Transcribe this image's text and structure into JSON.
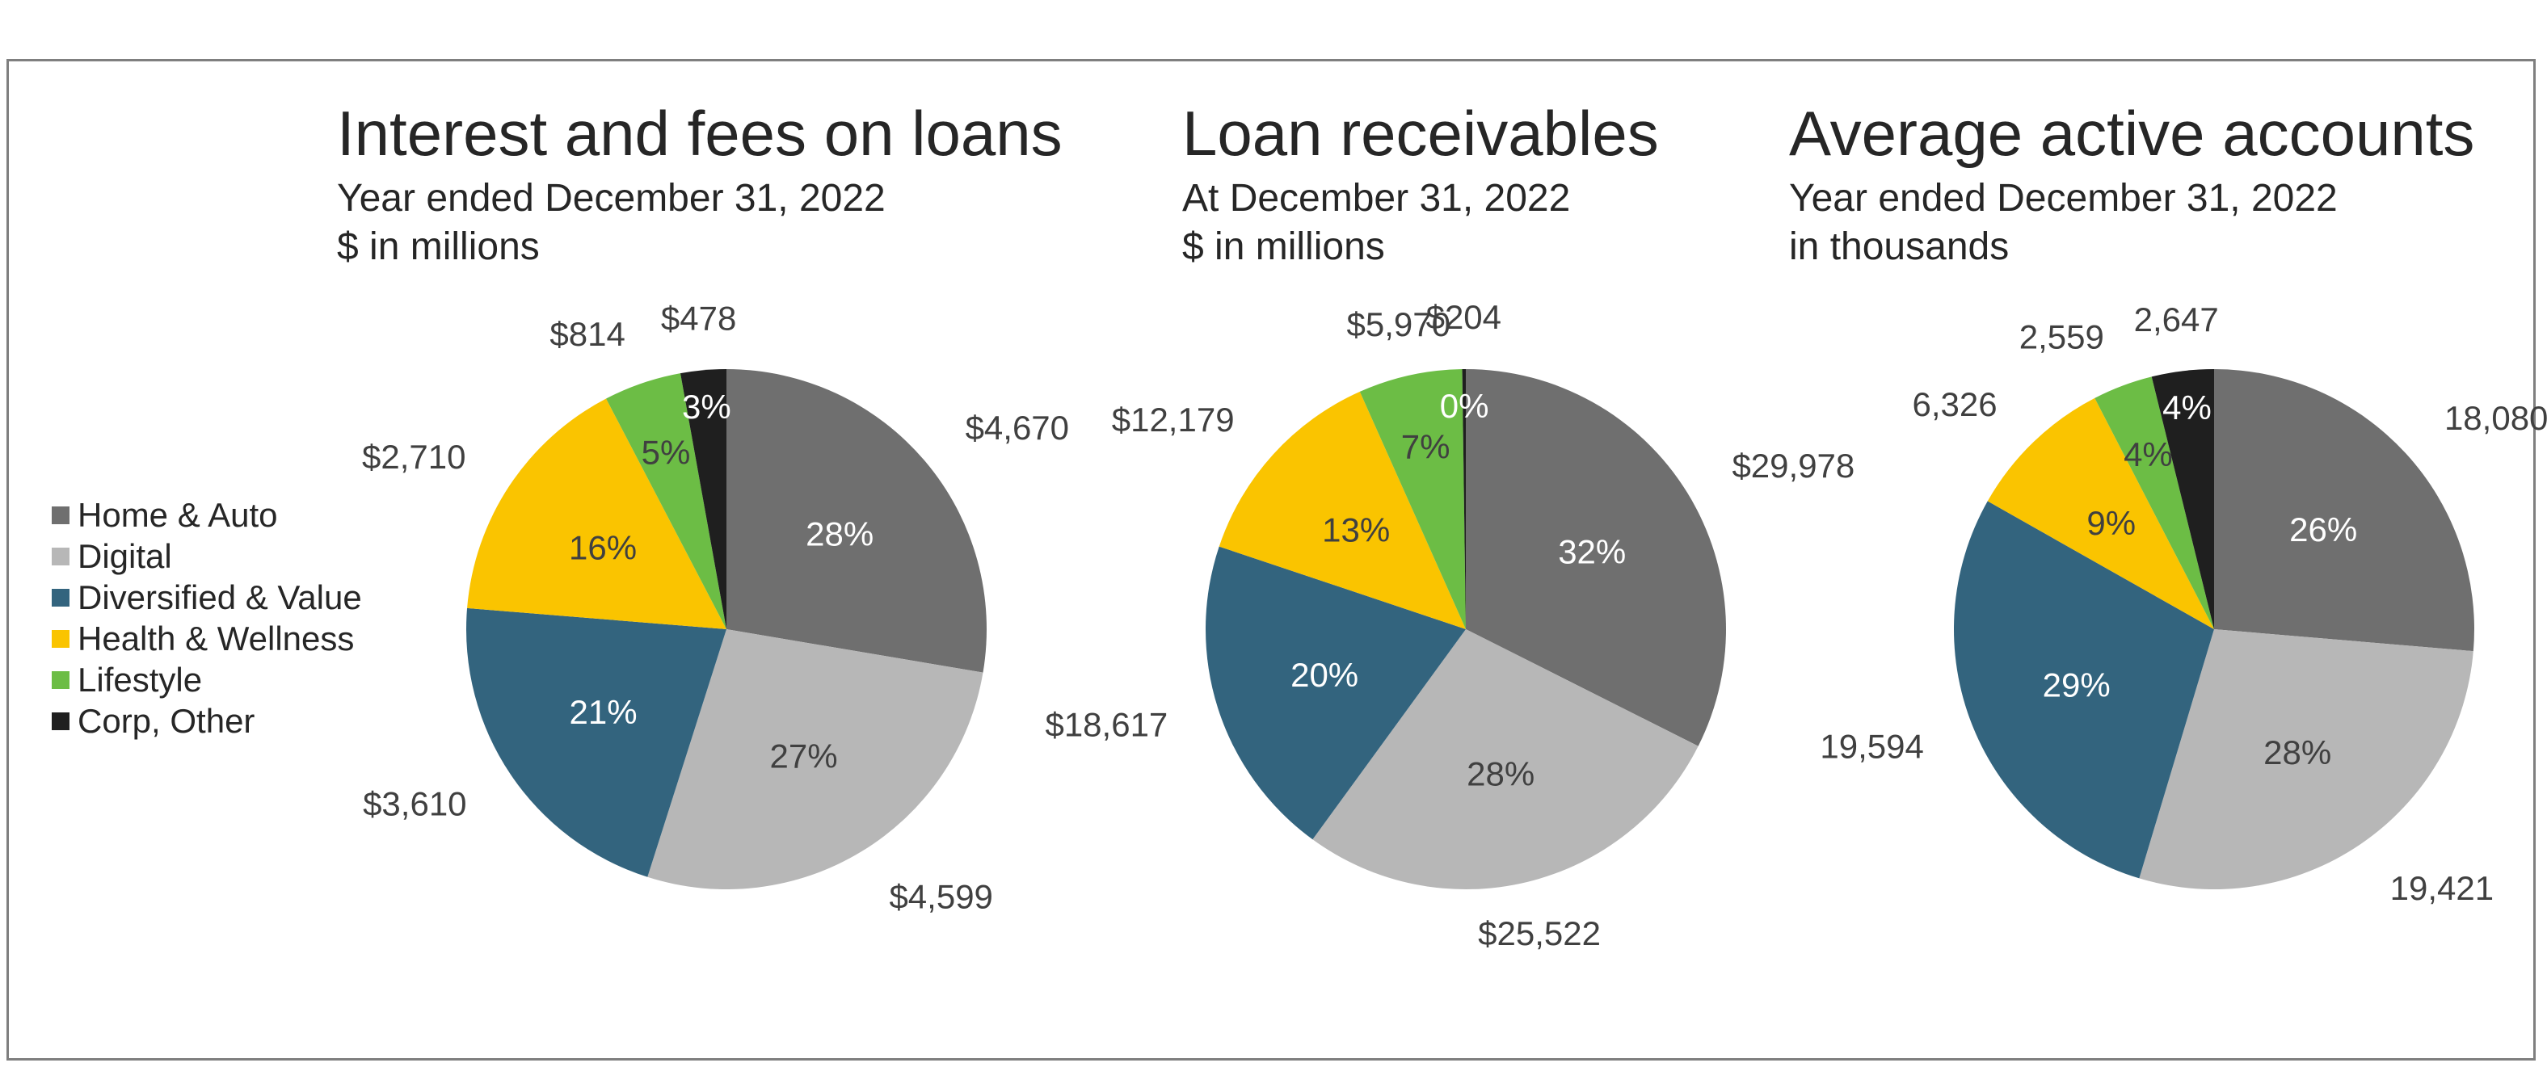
{
  "chart_data": [
    {
      "type": "pie",
      "title": "Interest and fees on loans",
      "subtitle": [
        "Year ended December 31, 2022",
        "$ in millions"
      ],
      "slices": [
        {
          "name": "Home & Auto",
          "value": 4670,
          "label": "$4,670",
          "percent": "28%"
        },
        {
          "name": "Digital",
          "value": 4599,
          "label": "$4,599",
          "percent": "27%"
        },
        {
          "name": "Diversified & Value",
          "value": 3610,
          "label": "$3,610",
          "percent": "21%"
        },
        {
          "name": "Health & Wellness",
          "value": 2710,
          "label": "$2,710",
          "percent": "16%"
        },
        {
          "name": "Lifestyle",
          "value": 814,
          "label": "$814",
          "percent": "5%"
        },
        {
          "name": "Corp, Other",
          "value": 478,
          "label": "$478",
          "percent": "3%"
        }
      ]
    },
    {
      "type": "pie",
      "title": "Loan receivables",
      "subtitle": [
        "At December 31, 2022",
        "$ in millions"
      ],
      "slices": [
        {
          "name": "Home & Auto",
          "value": 29978,
          "label": "$29,978",
          "percent": "32%"
        },
        {
          "name": "Digital",
          "value": 25522,
          "label": "$25,522",
          "percent": "28%"
        },
        {
          "name": "Diversified & Value",
          "value": 18617,
          "label": "$18,617",
          "percent": "20%"
        },
        {
          "name": "Health & Wellness",
          "value": 12179,
          "label": "$12,179",
          "percent": "13%"
        },
        {
          "name": "Lifestyle",
          "value": 5970,
          "label": "$5,970",
          "percent": "7%"
        },
        {
          "name": "Corp, Other",
          "value": 204,
          "label": "$204",
          "percent": "0%"
        }
      ]
    },
    {
      "type": "pie",
      "title": "Average active accounts",
      "subtitle": [
        "Year ended December 31, 2022",
        "in thousands"
      ],
      "slices": [
        {
          "name": "Home & Auto",
          "value": 18080,
          "label": "18,080",
          "percent": "26%"
        },
        {
          "name": "Digital",
          "value": 19421,
          "label": "19,421",
          "percent": "28%"
        },
        {
          "name": "Diversified & Value",
          "value": 19594,
          "label": "19,594",
          "percent": "29%"
        },
        {
          "name": "Health & Wellness",
          "value": 6326,
          "label": "6,326",
          "percent": "9%"
        },
        {
          "name": "Lifestyle",
          "value": 2559,
          "label": "2,559",
          "percent": "4%"
        },
        {
          "name": "Corp, Other",
          "value": 2647,
          "label": "2,647",
          "percent": "4%"
        }
      ]
    }
  ],
  "legend": {
    "position": "left",
    "items": [
      {
        "name": "Home & Auto",
        "color": "#6f6f6f"
      },
      {
        "name": "Digital",
        "color": "#b7b7b7"
      },
      {
        "name": "Diversified & Value",
        "color": "#33647e"
      },
      {
        "name": "Health & Wellness",
        "color": "#fac400"
      },
      {
        "name": "Lifestyle",
        "color": "#6cbd45"
      },
      {
        "name": "Corp, Other",
        "color": "#1f1f1f"
      }
    ]
  },
  "percent_label_colors": [
    "#ffffff",
    "#404040",
    "#ffffff",
    "#404040",
    "#404040",
    "#ffffff"
  ]
}
